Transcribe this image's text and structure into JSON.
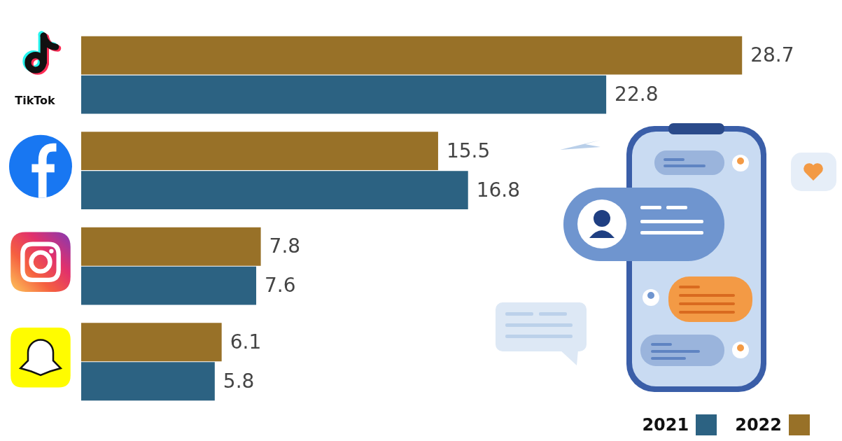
{
  "chart_data": {
    "type": "bar",
    "orientation": "horizontal",
    "categories": [
      "TikTok",
      null,
      null,
      null
    ],
    "series": [
      {
        "name": "2021",
        "color": "#2c6282",
        "values": [
          22.8,
          16.8,
          7.6,
          5.8
        ]
      },
      {
        "name": "2022",
        "color": "#987128",
        "values": [
          28.7,
          15.5,
          7.8,
          6.1
        ]
      }
    ],
    "xlim": [
      0,
      30
    ],
    "grid": false,
    "legend": "bottom right",
    "data_labels": true,
    "tick_labels": "y"
  }
}
